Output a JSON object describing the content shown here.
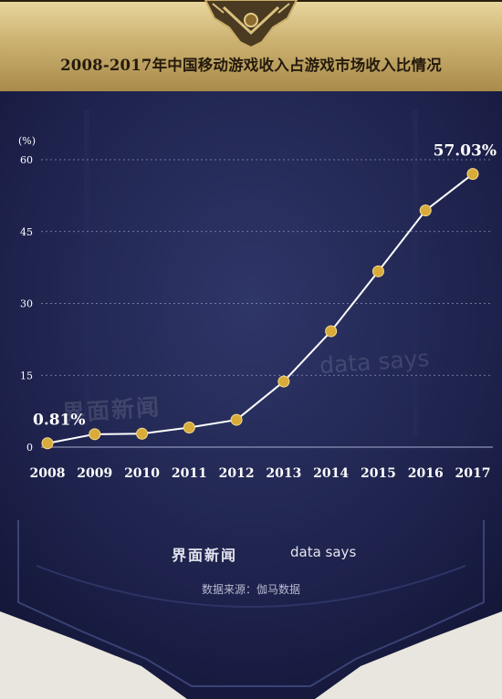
{
  "header": {
    "title": "2008-2017年中国移动游戏收入占游戏市场收入比情况"
  },
  "colors": {
    "panel": "#1f2350",
    "line": "#ffffff",
    "point": "#d8ab3a",
    "header_gold": "#ccb271"
  },
  "watermark": {
    "logo_text": "界面新闻",
    "brand_text": "data says"
  },
  "footer": {
    "logo_text": "界面新闻",
    "brand_text": "data says",
    "source": "数据来源：伽马数据"
  },
  "chart_data": {
    "type": "line",
    "title": "2008-2017年中国移动游戏收入占游戏市场收入比情况",
    "ylabel": "(%)",
    "xlabel": "",
    "ylim": [
      0,
      60
    ],
    "yticks": [
      0,
      15,
      30,
      45,
      60
    ],
    "grid": true,
    "x": [
      "2008",
      "2009",
      "2010",
      "2011",
      "2012",
      "2013",
      "2014",
      "2015",
      "2016",
      "2017"
    ],
    "series": [
      {
        "values": [
          0.81,
          2.7,
          2.8,
          4.1,
          5.7,
          13.7,
          24.2,
          36.7,
          49.4,
          57.03
        ]
      }
    ],
    "annotations": [
      {
        "index": 0,
        "text": "0.81%"
      },
      {
        "index": 9,
        "text": "57.03%"
      }
    ]
  }
}
